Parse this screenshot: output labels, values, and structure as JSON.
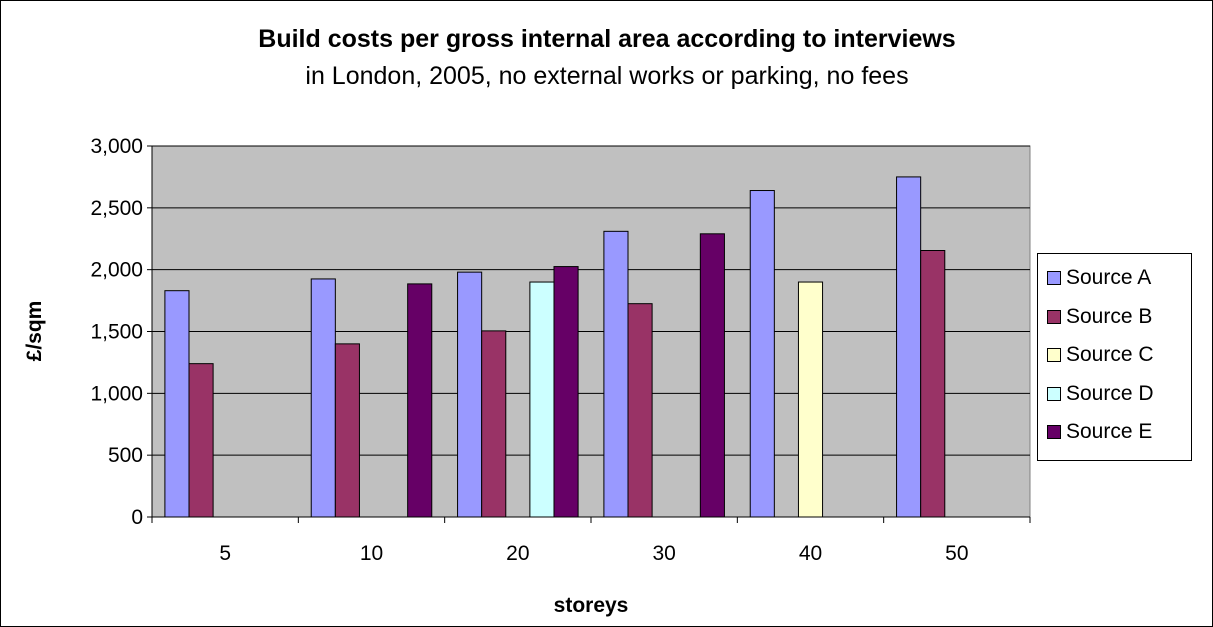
{
  "chart_data": {
    "type": "bar",
    "title": "Build costs per gross internal area according to interviews",
    "subtitle": "in London, 2005, no external works or parking, no fees",
    "xlabel": "storeys",
    "ylabel": "£/sqm",
    "categories": [
      "5",
      "10",
      "20",
      "30",
      "40",
      "50"
    ],
    "ylim": [
      0,
      3000
    ],
    "yticks": [
      "0",
      "500",
      "1,000",
      "1,500",
      "2,000",
      "2,500",
      "3,000"
    ],
    "grid": true,
    "legend_position": "right",
    "plot_background": "#c0c0c0",
    "series": [
      {
        "name": "Source A",
        "color": "#9999ff",
        "values": [
          1830,
          1925,
          1980,
          2310,
          2640,
          2750
        ]
      },
      {
        "name": "Source B",
        "color": "#993366",
        "values": [
          1240,
          1400,
          1505,
          1725,
          null,
          2155
        ]
      },
      {
        "name": "Source C",
        "color": "#ffffcc",
        "values": [
          null,
          null,
          null,
          null,
          1900,
          null
        ]
      },
      {
        "name": "Source D",
        "color": "#ccffff",
        "values": [
          null,
          null,
          1900,
          null,
          null,
          null
        ]
      },
      {
        "name": "Source E",
        "color": "#660066",
        "values": [
          null,
          1885,
          2025,
          2290,
          null,
          null
        ]
      }
    ]
  }
}
